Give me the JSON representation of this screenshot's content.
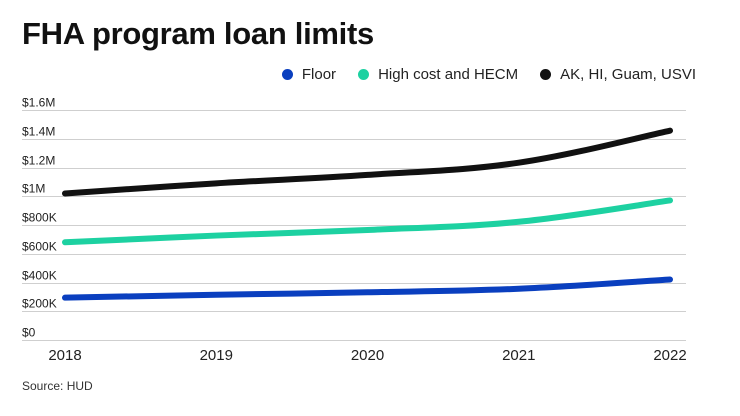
{
  "header": {
    "title": "FHA program loan limits"
  },
  "footer": {
    "source": "Source: HUD"
  },
  "chart_data": {
    "type": "line",
    "title": "FHA program loan limits",
    "xlabel": "",
    "ylabel": "",
    "categories": [
      "2018",
      "2019",
      "2020",
      "2021",
      "2022"
    ],
    "ylim": [
      0,
      1600000
    ],
    "y_ticks": [
      0,
      200000,
      400000,
      600000,
      800000,
      1000000,
      1200000,
      1400000,
      1600000
    ],
    "y_tick_labels": [
      "$0",
      "$200K",
      "$400K",
      "$600K",
      "$800K",
      "$1M",
      "$1.2M",
      "$1.4M",
      "$1.6M"
    ],
    "grid": true,
    "legend_position": "top-right",
    "series": [
      {
        "name": "Floor",
        "color": "#0a3fbf",
        "values": [
          294515,
          314827,
          331760,
          356362,
          420680
        ]
      },
      {
        "name": "High cost and HECM",
        "color": "#1dd1a1",
        "values": [
          679650,
          726525,
          765600,
          822375,
          970800
        ]
      },
      {
        "name": "AK, HI, Guam, USVI",
        "color": "#111111",
        "values": [
          1019475,
          1089787,
          1148400,
          1233562,
          1456200
        ]
      }
    ]
  }
}
